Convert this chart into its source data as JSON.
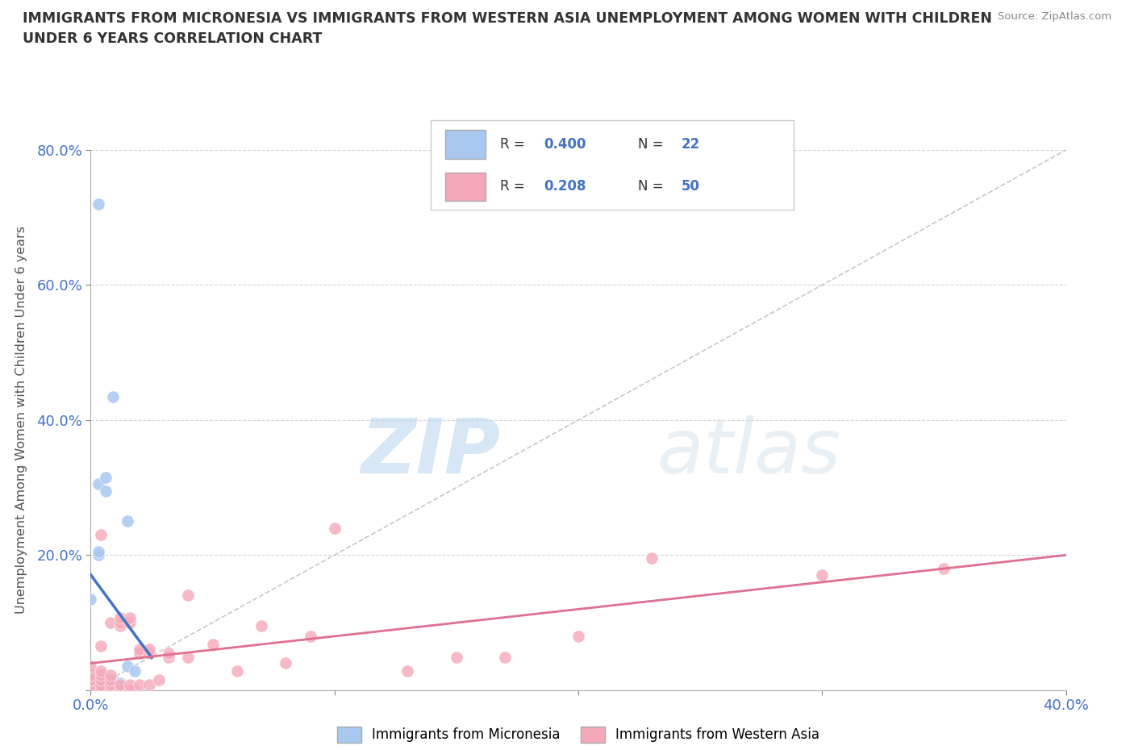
{
  "title_line1": "IMMIGRANTS FROM MICRONESIA VS IMMIGRANTS FROM WESTERN ASIA UNEMPLOYMENT AMONG WOMEN WITH CHILDREN",
  "title_line2": "UNDER 6 YEARS CORRELATION CHART",
  "source": "Source: ZipAtlas.com",
  "ylabel": "Unemployment Among Women with Children Under 6 years",
  "xlim": [
    0.0,
    0.4
  ],
  "ylim": [
    0.0,
    0.8
  ],
  "watermark_zip": "ZIP",
  "watermark_atlas": "atlas",
  "background_color": "#ffffff",
  "grid_color": "#cccccc",
  "micronesia_color": "#a8c8f0",
  "western_asia_color": "#f5a8b8",
  "micronesia_line_color": "#4472c4",
  "western_asia_line_color": "#e07090",
  "diag_line_color": "#aaaaaa",
  "micronesia_R": "0.400",
  "micronesia_N": "22",
  "western_asia_R": "0.208",
  "western_asia_N": "50",
  "title_color": "#333333",
  "axis_label_color": "#4472c4",
  "legend_label_micronesia": "Immigrants from Micronesia",
  "legend_label_western_asia": "Immigrants from Western Asia",
  "micronesia_x": [
    0.0,
    0.0,
    0.0,
    0.0,
    0.003,
    0.003,
    0.003,
    0.003,
    0.003,
    0.006,
    0.006,
    0.006,
    0.006,
    0.009,
    0.009,
    0.012,
    0.012,
    0.015,
    0.015,
    0.018,
    0.018,
    0.003
  ],
  "micronesia_y": [
    0.0,
    0.015,
    0.025,
    0.135,
    0.0,
    0.015,
    0.2,
    0.205,
    0.305,
    0.0,
    0.015,
    0.295,
    0.315,
    0.015,
    0.435,
    0.0,
    0.01,
    0.035,
    0.25,
    0.028,
    0.0,
    0.72
  ],
  "western_asia_x": [
    0.0,
    0.0,
    0.0,
    0.0,
    0.0,
    0.004,
    0.004,
    0.004,
    0.004,
    0.004,
    0.004,
    0.004,
    0.008,
    0.008,
    0.008,
    0.008,
    0.008,
    0.012,
    0.012,
    0.012,
    0.012,
    0.012,
    0.016,
    0.016,
    0.016,
    0.016,
    0.02,
    0.02,
    0.02,
    0.024,
    0.024,
    0.024,
    0.028,
    0.032,
    0.032,
    0.04,
    0.04,
    0.05,
    0.06,
    0.07,
    0.08,
    0.09,
    0.1,
    0.13,
    0.15,
    0.17,
    0.2,
    0.23,
    0.3,
    0.35
  ],
  "western_asia_y": [
    0.0,
    0.008,
    0.015,
    0.022,
    0.035,
    0.0,
    0.008,
    0.015,
    0.022,
    0.028,
    0.065,
    0.23,
    0.0,
    0.008,
    0.015,
    0.022,
    0.1,
    0.0,
    0.008,
    0.095,
    0.1,
    0.107,
    0.0,
    0.008,
    0.1,
    0.107,
    0.008,
    0.055,
    0.06,
    0.008,
    0.055,
    0.06,
    0.015,
    0.048,
    0.055,
    0.048,
    0.14,
    0.068,
    0.028,
    0.095,
    0.04,
    0.08,
    0.24,
    0.028,
    0.048,
    0.048,
    0.08,
    0.195,
    0.17,
    0.18
  ]
}
